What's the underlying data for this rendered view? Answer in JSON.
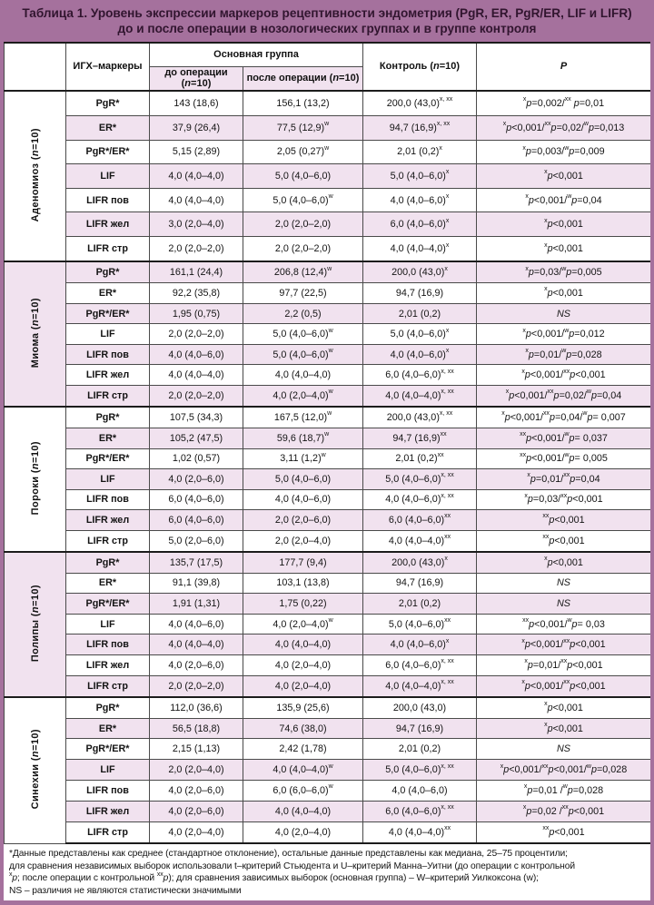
{
  "title": "Таблица 1. Уровень экспрессии маркеров рецептивности эндометрия (PgR, ER, PgR/ER, LIF и LIFR) до и после операции в нозологических группах и в группе контроля",
  "header": {
    "markers": "ИГХ–маркеры",
    "main_group": "Основная группа",
    "before": "до операции (~n~=10)",
    "after": "после операции (~n~=10)",
    "control": "Контроль (~n~=10)",
    "p": "~P~"
  },
  "groups": [
    {
      "label": "Аденомиоз (~n~=10)",
      "rows": [
        [
          "PgR*",
          "143 (18,6)",
          "156,1 (13,2)",
          "200,0 (43,0)^х, хх^",
          "^х^~p~=0,002/^хх^ ~p~=0,01"
        ],
        [
          "ER*",
          "37,9 (26,4)",
          "77,5 (12,9)^w^",
          "94,7 (16,9)^х, хх^",
          "^х^~p~<0,001/^хх^~p~=0,02/^w^~p~=0,013"
        ],
        [
          "PgR*/ER*",
          "5,15 (2,89)",
          "2,05 (0,27)^w^",
          "2,01 (0,2)^х^",
          "^х^~p~=0,003/^w^~p~=0,009"
        ],
        [
          "LIF",
          "4,0 (4,0–4,0)",
          "5,0 (4,0–6,0)",
          "5,0 (4,0–6,0)^х^",
          "^х^~p~<0,001"
        ],
        [
          "LIFR пов",
          "4,0 (4,0–4,0)",
          "5,0 (4,0–6,0)^w^",
          "4,0 (4,0–6,0)^х^",
          "^х^~p~<0,001/^w^~p~=0,04"
        ],
        [
          "LIFR жел",
          "3,0 (2,0–4,0)",
          "2,0 (2,0–2,0)",
          "6,0 (4,0–6,0)^х^",
          "^х^~p~<0,001"
        ],
        [
          "LIFR стр",
          "2,0 (2,0–2,0)",
          "2,0 (2,0–2,0)",
          "4,0 (4,0–4,0)^х^",
          "^х^~p~<0,001"
        ]
      ]
    },
    {
      "label": "Миома (~n~=10)",
      "rows": [
        [
          "PgR*",
          "161,1 (24,4)",
          "206,8 (12,4)^w^",
          "200,0 (43,0)^х^",
          "^х^~p~=0,03/^w^~p~=0,005"
        ],
        [
          "ER*",
          "92,2 (35,8)",
          "97,7 (22,5)",
          "94,7 (16,9)",
          "^х^~p~<0,001"
        ],
        [
          "PgR*/ER*",
          "1,95 (0,75)",
          "2,2 (0,5)",
          "2,01 (0,2)",
          "~NS~"
        ],
        [
          "LIF",
          "2,0 (2,0–2,0)",
          "5,0 (4,0–6,0)^w^",
          "5,0 (4,0–6,0)^х^",
          "^х^~p~<0,001/^w^~p~=0,012"
        ],
        [
          "LIFR пов",
          "4,0 (4,0–6,0)",
          "5,0 (4,0–6,0)^w^",
          "4,0 (4,0–6,0)^х^",
          "^х^~p~=0,01/^w^~p~=0,028"
        ],
        [
          "LIFR жел",
          "4,0 (4,0–4,0)",
          "4,0 (4,0–4,0)",
          "6,0 (4,0–6,0)^х, хх^",
          "^х^~p~<0,001/^хх^~p~<0,001"
        ],
        [
          "LIFR стр",
          "2,0 (2,0–2,0)",
          "4,0 (2,0–4,0)^w^",
          "4,0 (4,0–4,0)^х, хх^",
          "^х^~p~<0,001/^хх^~p~=0,02/^w^~p~=0,04"
        ]
      ]
    },
    {
      "label": "Пороки (~n~=10)",
      "rows": [
        [
          "PgR*",
          "107,5 (34,3)",
          "167,5 (12,0)^w^",
          "200,0 (43,0)^х, хх^",
          "^х^~p~<0,001/^хх^~p~=0,04/^w^~p~= 0,007"
        ],
        [
          "ER*",
          "105,2 (47,5)",
          "59,6 (18,7)^w^",
          "94,7 (16,9)^хх^",
          "^хх^~p~<0,001/^w^~p~= 0,037"
        ],
        [
          "PgR*/ER*",
          "1,02 (0,57)",
          "3,11 (1,2)^w^",
          "2,01 (0,2)^хх^",
          "^хх^~p~<0,001/^w^~p~= 0,005"
        ],
        [
          "LIF",
          "4,0 (2,0–6,0)",
          "5,0 (4,0–6,0)",
          "5,0 (4,0–6,0)^х, хх^",
          "^х^~p~=0,01/^хх^~p~=0,04"
        ],
        [
          "LIFR пов",
          "6,0 (4,0–6,0)",
          "4,0 (4,0–6,0)",
          "4,0 (4,0–6,0)^х, хх^",
          "^х^~p~=0,03/^хх^~p~<0,001"
        ],
        [
          "LIFR жел",
          "6,0 (4,0–6,0)",
          "2,0 (2,0–6,0)",
          "6,0 (4,0–6,0)^хх^",
          "^хх^~p~<0,001"
        ],
        [
          "LIFR стр",
          "5,0 (2,0–6,0)",
          "2,0 (2,0–4,0)",
          "4,0 (4,0–4,0)^хх^",
          "^хх^~p~<0,001"
        ]
      ]
    },
    {
      "label": "Полипы (~n~=10)",
      "rows": [
        [
          "PgR*",
          "135,7 (17,5)",
          "177,7 (9,4)",
          "200,0 (43,0)^х^",
          "^х^~p~<0,001"
        ],
        [
          "ER*",
          "91,1 (39,8)",
          "103,1 (13,8)",
          "94,7 (16,9)",
          "~NS~"
        ],
        [
          "PgR*/ER*",
          "1,91 (1,31)",
          "1,75 (0,22)",
          "2,01 (0,2)",
          "~NS~"
        ],
        [
          "LIF",
          "4,0 (4,0–6,0)",
          "4,0 (2,0–4,0)^w^",
          "5,0 (4,0–6,0)^хх^",
          "^хх^~p~<0,001/^w^~p~= 0,03"
        ],
        [
          "LIFR пов",
          "4,0 (4,0–4,0)",
          "4,0 (4,0–4,0)",
          "4,0 (4,0–6,0)^х^",
          "^х^~p~<0,001/^хх^~p~<0,001"
        ],
        [
          "LIFR жел",
          "4,0 (2,0–6,0)",
          "4,0 (2,0–4,0)",
          "6,0 (4,0–6,0)^х, хх^",
          "^х^~p~=0,01/^хх^~p~<0,001"
        ],
        [
          "LIFR стр",
          "2,0 (2,0–2,0)",
          "4,0 (2,0–4,0)",
          "4,0 (4,0–4,0)^х, хх^",
          "^х^~p~<0,001/^хх^~p~<0,001"
        ]
      ]
    },
    {
      "label": "Синехии (~n~=10)",
      "rows": [
        [
          "PgR*",
          "112,0 (36,6)",
          "135,9 (25,6)",
          "200,0 (43,0)",
          "^х^~p~<0,001"
        ],
        [
          "ER*",
          "56,5 (18,8)",
          "74,6 (38,0)",
          "94,7 (16,9)",
          "^х^~p~<0,001"
        ],
        [
          "PgR*/ER*",
          "2,15 (1,13)",
          "2,42 (1,78)",
          "2,01 (0,2)",
          "~NS~"
        ],
        [
          "LIF",
          "2,0 (2,0–4,0)",
          "4,0 (4,0–4,0)^w^",
          "5,0 (4,0–6,0)^х, хх^",
          "^х^~p~<0,001/^хх^~p~<0,001/^w^~p~=0,028"
        ],
        [
          "LIFR пов",
          "4,0 (2,0–6,0)",
          "6,0 (6,0–6,0)^w^",
          "4,0 (4,0–6,0)",
          "^х^~p~=0,01 /^w^~p~=0,028"
        ],
        [
          "LIFR жел",
          "4,0 (2,0–6,0)",
          "4,0 (4,0–4,0)",
          "6,0 (4,0–6,0)^х, хх^",
          "^х^~p~=0,02 /^хх^~p~<0,001"
        ],
        [
          "LIFR стр",
          "4,0 (2,0–4,0)",
          "4,0 (2,0–4,0)",
          "4,0 (4,0–4,0)^хх^",
          "^хх^~p~<0,001"
        ]
      ]
    }
  ],
  "footnotes": [
    "*Данные представлены как среднее (стандартное отклонение), остальные данные представлены как медиана, 25–75 процентили;",
    "для сравнения независимых выборок использовали t–критерий Стьюдента и U–критерий Манна–Уитни (до операции с контрольной",
    "^х^~p~; после операции с контрольной ^хх^~p~); для сравнения зависимых выборок (основная группа) – W–критерий Уилкоксона (w);",
    "NS – различия не являются статистически значимыми"
  ],
  "colors": {
    "accent": "#a5719d",
    "stripe": "#f1e2ef",
    "title_text": "#31152f"
  }
}
